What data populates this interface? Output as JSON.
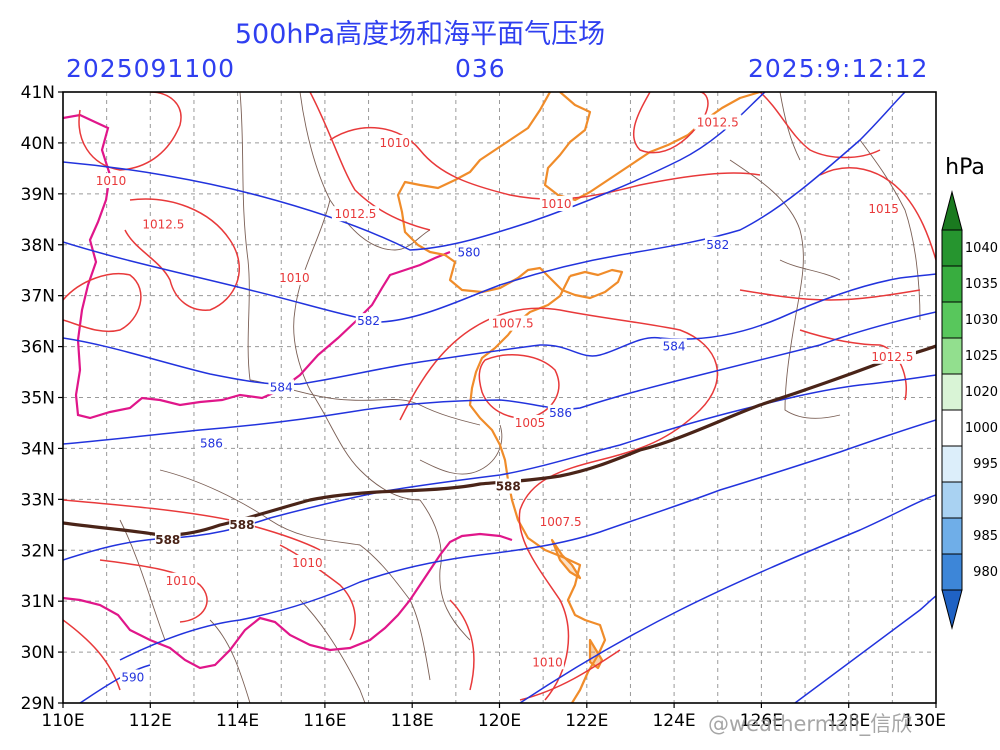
{
  "header": {
    "title": "500hPa高度场和海平面气压场",
    "init_time": "2025091100",
    "forecast_hour": "036",
    "valid_time": "2025:9:12:12"
  },
  "map": {
    "lon_range": [
      110,
      130
    ],
    "lat_range": [
      29,
      41
    ],
    "x_ticks": [
      "110E",
      "112E",
      "114E",
      "116E",
      "118E",
      "120E",
      "122E",
      "124E",
      "126E",
      "128E",
      "130E"
    ],
    "y_ticks": [
      "29N",
      "30N",
      "31N",
      "32N",
      "33N",
      "34N",
      "35N",
      "36N",
      "37N",
      "38N",
      "39N",
      "40N",
      "41N"
    ],
    "grid": true,
    "colors": {
      "height_contours": "#2233dd",
      "pressure_contours": "#e8393a",
      "line_588": "#4a2418",
      "coastline": "#f08c2a",
      "boundary": "#e0168a",
      "borders": "#7a5f55"
    },
    "height_contour_labels": [
      {
        "text": "580",
        "lon": 119.3,
        "lat": 37.85
      },
      {
        "text": "582",
        "lon": 117.0,
        "lat": 36.5
      },
      {
        "text": "582",
        "lon": 125.0,
        "lat": 38.0
      },
      {
        "text": "584",
        "lon": 115.0,
        "lat": 35.2
      },
      {
        "text": "584",
        "lon": 124.0,
        "lat": 36.0
      },
      {
        "text": "586",
        "lon": 113.4,
        "lat": 34.1
      },
      {
        "text": "586",
        "lon": 121.4,
        "lat": 34.7
      },
      {
        "text": "588",
        "lon": 112.4,
        "lat": 32.2
      },
      {
        "text": "588",
        "lon": 114.1,
        "lat": 32.5
      },
      {
        "text": "588",
        "lon": 120.2,
        "lat": 33.25
      },
      {
        "text": "590",
        "lon": 111.6,
        "lat": 29.5
      }
    ],
    "pressure_contour_labels": [
      {
        "text": "1010",
        "lon": 117.6,
        "lat": 40.0
      },
      {
        "text": "1010",
        "lon": 111.1,
        "lat": 39.25
      },
      {
        "text": "1012.5",
        "lon": 112.3,
        "lat": 38.4
      },
      {
        "text": "1012.5",
        "lon": 116.7,
        "lat": 38.6
      },
      {
        "text": "1010",
        "lon": 115.3,
        "lat": 37.35
      },
      {
        "text": "1012.5",
        "lon": 125.0,
        "lat": 40.4
      },
      {
        "text": "1010",
        "lon": 121.3,
        "lat": 38.8
      },
      {
        "text": "1015",
        "lon": 128.8,
        "lat": 38.7
      },
      {
        "text": "1012.5",
        "lon": 129.0,
        "lat": 35.8
      },
      {
        "text": "1007.5",
        "lon": 120.3,
        "lat": 36.45
      },
      {
        "text": "1005",
        "lon": 120.7,
        "lat": 34.5
      },
      {
        "text": "1007.5",
        "lon": 121.4,
        "lat": 32.55
      },
      {
        "text": "1010",
        "lon": 115.6,
        "lat": 31.75
      },
      {
        "text": "1010",
        "lon": 112.7,
        "lat": 31.4
      },
      {
        "text": "1010",
        "lon": 121.1,
        "lat": 29.8
      }
    ]
  },
  "colorbar": {
    "title": "hPa",
    "levels": [
      "1040",
      "1035",
      "1030",
      "1025",
      "1020",
      "1000",
      "995",
      "990",
      "985",
      "980"
    ],
    "colors": [
      "#1a7a1f",
      "#26952f",
      "#38ad3f",
      "#58c75c",
      "#92df8e",
      "#d9f4d6",
      "#ffffff",
      "#dceefa",
      "#a9d2f2",
      "#6faee8",
      "#3d86d8",
      "#1f62c4"
    ]
  },
  "watermark": "@weathermall_信欣"
}
